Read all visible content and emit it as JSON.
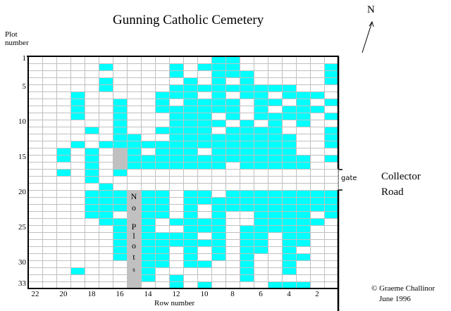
{
  "title": "Gunning Catholic Cemetery",
  "north_label": "N",
  "plot_axis_label_line1": "Plot",
  "plot_axis_label_line2": "number",
  "row_axis_label": "Row number",
  "plot_number_ticks": [
    "1",
    "5",
    "10",
    "15",
    "20",
    "25",
    "30",
    "33"
  ],
  "row_number_ticks": [
    "22",
    "20",
    "18",
    "16",
    "14",
    "12",
    "10",
    "8",
    "6",
    "4",
    "2"
  ],
  "gate_label": "gate",
  "road_label_line1": "Collector",
  "road_label_line2": "Road",
  "no_plots_label": [
    "N",
    "o",
    "P",
    "l",
    "o",
    "t",
    "s"
  ],
  "copyright_line1": "© Graeme Challinor",
  "copyright_line2": "June  1996",
  "colors": {
    "occupied": "#00ffff",
    "no_plots": "#c0c0c0",
    "empty": "#ffffff",
    "grid": "#c0c0c0"
  },
  "legend_encoding": {
    "0": "empty",
    "1": "occupied",
    "2": "no plots"
  },
  "grid_columns_row_numbers": "22 (left) to 1 (right)",
  "grid": [
    "0000000000000110000000",
    "0000010000101110000001",
    "0000000000100111000001",
    "0000010000010101000001",
    "0000010000111111111000",
    "0001000001110101101110",
    "0001001001011110110101",
    "0001001001111110101110",
    "0001001000111010111101",
    "0000001000111101010100",
    "0000101001111011110001",
    "0000001100111111111001",
    "0001011111111111111001",
    "0010102101110111111000",
    "0010102111111111111101",
    "0000102111111101111100",
    "0010101000000000000000",
    "0000100000000000000000",
    "0000010000000000000000",
    "0000111211011011111111",
    "0000111211011111111111",
    "0000111211010111111111",
    "0000110211010100111101",
    "0000011210111100111110",
    "0000001210011101111100",
    "0000001211110101101100",
    "0000001211111101101100",
    "0000001211010101101000",
    "0000001211010101001100",
    "0000000211011001001000",
    "0001000210000001001000",
    "0000000210100001000000",
    "0000000200101000011100"
  ]
}
